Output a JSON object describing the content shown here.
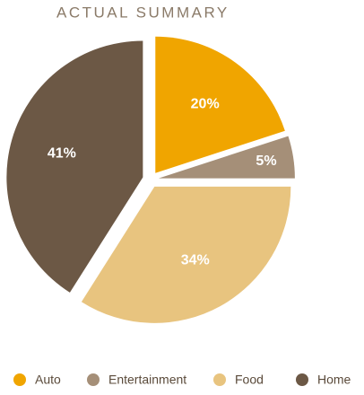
{
  "chart_data": {
    "type": "pie",
    "title": "ACTUAL SUMMARY",
    "categories": [
      "Auto",
      "Entertainment",
      "Food",
      "Home"
    ],
    "values": [
      20,
      5,
      34,
      41
    ],
    "value_labels": [
      "20%",
      "5%",
      "34%",
      "41%"
    ],
    "colors": [
      "#f0a500",
      "#a58f78",
      "#e8c47f",
      "#6c5845"
    ],
    "legend": "bottom"
  }
}
